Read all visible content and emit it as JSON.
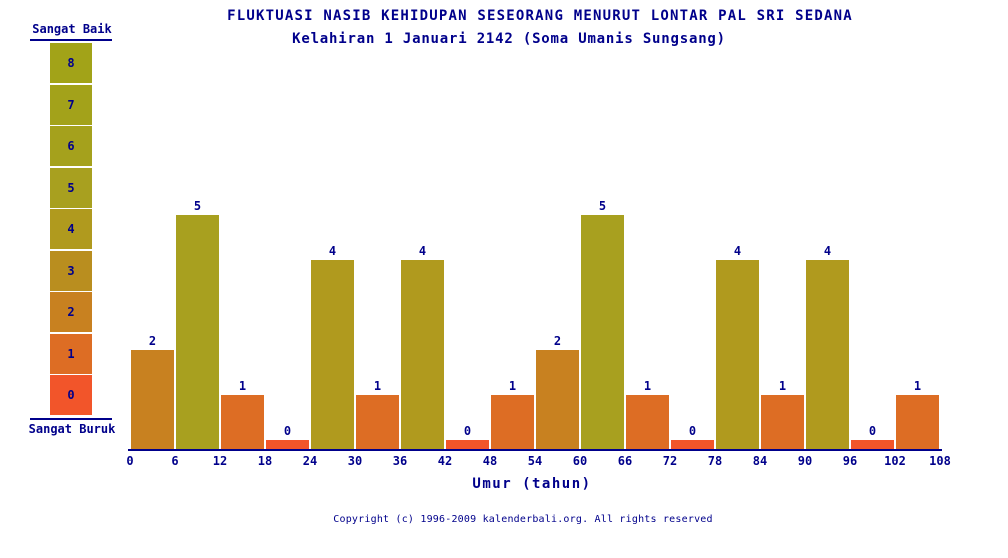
{
  "title": "FLUKTUASI NASIB KEHIDUPAN SESEORANG MENURUT LONTAR PAL SRI SEDANA",
  "subtitle": "Kelahiran 1 Januari 2142 (Soma Umanis Sungsang)",
  "legend": {
    "top_label": "Sangat Baik",
    "bottom_label": "Sangat Buruk",
    "values": [
      8,
      7,
      6,
      5,
      4,
      3,
      2,
      1,
      0
    ]
  },
  "chart_data": {
    "type": "bar",
    "title": "FLUKTUASI NASIB KEHIDUPAN SESEORANG MENURUT LONTAR PAL SRI SEDANA",
    "subtitle": "Kelahiran 1 Januari 2142 (Soma Umanis Sungsang)",
    "xlabel": "Umur (tahun)",
    "categories": [
      "0-6",
      "6-12",
      "12-18",
      "18-24",
      "24-30",
      "30-36",
      "36-42",
      "42-48",
      "48-54",
      "54-60",
      "60-66",
      "66-72",
      "72-78",
      "78-84",
      "84-90",
      "90-96",
      "96-102",
      "102-108"
    ],
    "values": [
      2,
      5,
      1,
      0,
      4,
      1,
      4,
      0,
      1,
      2,
      5,
      1,
      0,
      4,
      1,
      4,
      0,
      1
    ],
    "x_tick_labels": [
      "0",
      "6",
      "12",
      "18",
      "24",
      "30",
      "36",
      "42",
      "48",
      "54",
      "60",
      "66",
      "72",
      "78",
      "84",
      "90",
      "96",
      "102",
      "108"
    ],
    "ylim": [
      0,
      8
    ],
    "grid": false,
    "legend_position": "left",
    "scale_colors": {
      "0": "#f2552a",
      "1": "#dd6d24",
      "2": "#c88120",
      "3": "#b98e1f",
      "4": "#b09a1e",
      "5": "#a8a01f",
      "6": "#a5a11c",
      "7": "#a3a21a",
      "8": "#a2a318"
    }
  },
  "footer": {
    "copyright": "Copyright (c) 1996-2009 kalenderbali.org. All rights reserved"
  },
  "colors": {
    "text": "#00008B",
    "axis": "#00008B",
    "background": "#ffffff"
  }
}
